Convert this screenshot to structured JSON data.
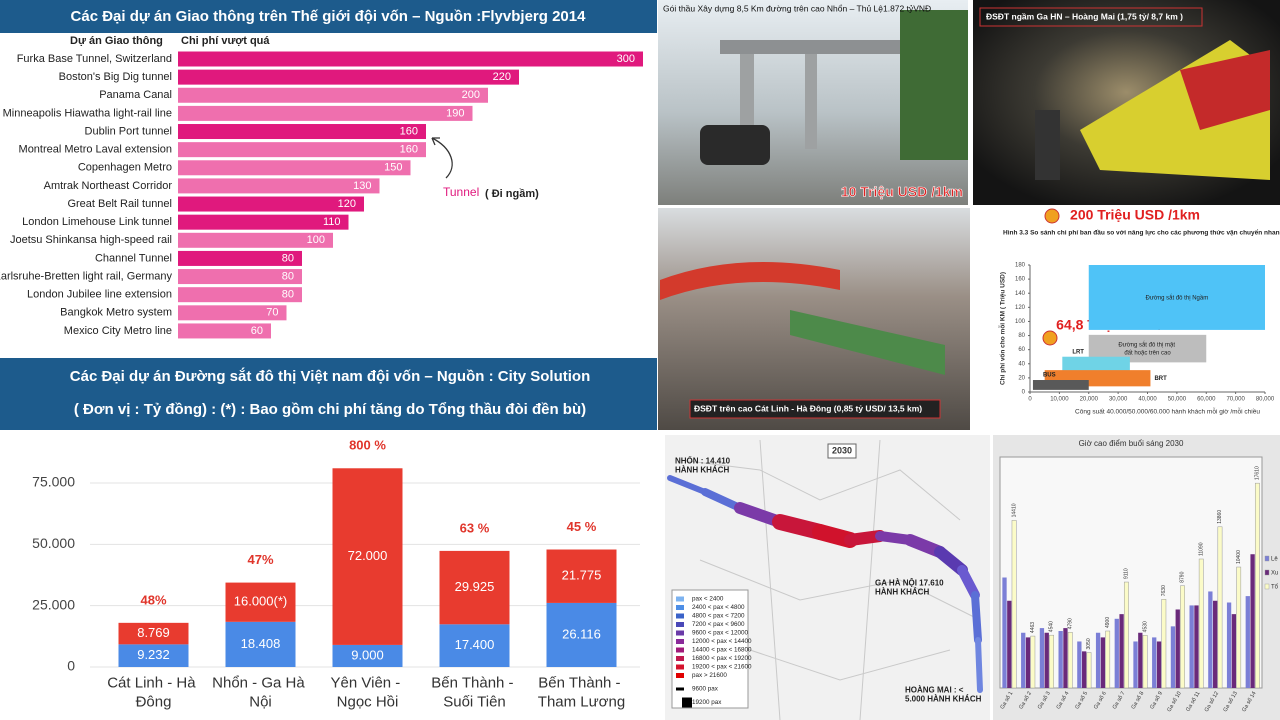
{
  "chart_data": [
    {
      "type": "hbar",
      "title": "Các Đại dự án Giao thông  trên Thế giới  đội vốn – Nguồn :Flyvbjerg 2014",
      "category_header": "Dự án Giao thông",
      "value_header": "Chi phí vượt quá",
      "categories": [
        "Furka Base Tunnel, Switzerland",
        "Boston's Big Dig tunnel",
        "Panama Canal",
        "Minneapolis Hiawatha light-rail line",
        "Dublin Port tunnel",
        "Montreal Metro Laval extension",
        "Copenhagen Metro",
        "Amtrak Northeast Corridor",
        "Great Belt Rail tunnel",
        "London Limehouse Link tunnel",
        "Joetsu Shinkansa high-speed rail",
        "Channel Tunnel",
        "Karlsruhe-Bretten light rail, Germany",
        "London Jubilee line extension",
        "Bangkok Metro system",
        "Mexico City Metro line"
      ],
      "values": [
        300,
        220,
        200,
        190,
        160,
        160,
        150,
        130,
        120,
        110,
        100,
        80,
        80,
        80,
        70,
        60
      ],
      "colors": [
        "#e0197d",
        "#e0197d",
        "#ef6fae",
        "#ef6fae",
        "#e0197d",
        "#ef6fae",
        "#ef6fae",
        "#ef6fae",
        "#e0197d",
        "#e0197d",
        "#ef6fae",
        "#e0197d",
        "#ef6fae",
        "#ef6fae",
        "#ef6fae",
        "#ef6fae"
      ],
      "xlim": [
        0,
        300
      ],
      "annotation": "Tunnel",
      "annotation_note": "( Đi ngầm)"
    },
    {
      "type": "stacked-bar",
      "title": "Các Đại dự án  Đường sắt đô thị Việt nam đội vốn – Nguồn : City Solution",
      "subtitle": "( Đơn vị :  Tỷ đồng) : (*) : Bao gồm chi phí tăng do Tổng thầu đòi đền bù)",
      "categories": [
        "Cát Linh - Hà Đông",
        "Nhổn - Ga Hà Nội",
        "Yên Viên - Ngọc Hồi",
        "Bến Thành - Suối Tiên",
        "Bến Thành - Tham Lương"
      ],
      "series": [
        {
          "color": "#4a8ae6",
          "values": [
            9232,
            18408,
            9000,
            17400,
            26116
          ],
          "value_labels": [
            "9.232",
            "18.408",
            "9.000",
            "17.400",
            "26.116"
          ]
        },
        {
          "color": "#e83b2f",
          "values": [
            8769,
            16000,
            72000,
            29925,
            21775
          ],
          "value_labels": [
            "8.769",
            "16.000(*)",
            "72.000",
            "29.925",
            "21.775"
          ]
        }
      ],
      "annotations": [
        "48%",
        "47%",
        "800 %",
        "63 %",
        "45 %"
      ],
      "ylim": [
        0,
        80000
      ],
      "yticks": [
        {
          "value": 0,
          "label": "0"
        },
        {
          "value": 25000,
          "label": "25.000"
        },
        {
          "value": 50000,
          "label": "50.000"
        },
        {
          "value": 75000,
          "label": "75.000"
        }
      ],
      "grid": true
    },
    {
      "type": "range-box",
      "title": "Hình 3.3 So sánh chi phí ban đầu so với năng lực cho các phương thức vận chuyển nhanh",
      "xlabel": "Công suất 40.000/50.000/60.000 hành khách mỗi giờ /mỗi chiều",
      "ylabel": "Chi phí vốn cho mỗi KM ( Triệu USD)",
      "xlim": [
        0,
        80000
      ],
      "xticks": [
        0,
        {
          "value": 10000,
          "label": "10,000"
        },
        {
          "value": 20000,
          "label": "20,000"
        },
        {
          "value": 30000,
          "label": "30,000"
        },
        {
          "value": 40000,
          "label": "40,000"
        },
        {
          "value": 50000,
          "label": "50,000"
        },
        {
          "value": 60000,
          "label": "60,000"
        },
        {
          "value": 70000,
          "label": "70,000"
        },
        {
          "value": 80000,
          "label": "80,000"
        }
      ],
      "ylim": [
        0,
        180
      ],
      "yticks": [
        0,
        20,
        40,
        60,
        80,
        100,
        120,
        140,
        160,
        180
      ],
      "boxes": [
        {
          "label": "Đường sắt đô thị Ngầm",
          "color": "#4fc3f7",
          "x": [
            20000,
            80000
          ],
          "y": [
            88,
            180
          ]
        },
        {
          "label": "Đường sắt đô thị mặt đất hoặc trên cao",
          "color": "#bdbdbd",
          "x": [
            20000,
            60000
          ],
          "y": [
            42,
            81
          ]
        },
        {
          "label": "LRT",
          "color": "#6fd3e6",
          "x": [
            11000,
            34000
          ],
          "y": [
            28,
            50
          ]
        },
        {
          "label": "BRT",
          "color": "#f07f2c",
          "x": [
            5000,
            41000
          ],
          "y": [
            8,
            31
          ]
        },
        {
          "label": "BUS",
          "color": "#595959",
          "x": [
            1000,
            20000
          ],
          "y": [
            3,
            17
          ]
        }
      ]
    },
    {
      "type": "grouped-bar",
      "title": "Giờ cao điểm buổi sáng 2030",
      "categories": [
        "Ga số 1",
        "Ga số 2",
        "Ga số 3",
        "Ga số 4",
        "Ga số 5",
        "Ga số 6",
        "Ga số 7",
        "Ga số 8",
        "Ga số 9",
        "Ga số 10",
        "Ga số 11",
        "Ga số 12",
        "Ga số 13",
        "Ga số 14"
      ],
      "ylim": [
        0,
        19000
      ],
      "series": [
        {
          "name": "Lê",
          "color": "#7b7fd6",
          "values": [
            9500,
            4750,
            5150,
            4900,
            4000,
            4750,
            5950,
            4000,
            4350,
            5300,
            7100,
            8300,
            7350,
            7900
          ]
        },
        {
          "name": "Xu",
          "color": "#6a2a7a",
          "values": [
            7500,
            4350,
            4750,
            5150,
            3150,
            4350,
            6350,
            4750,
            4000,
            6750,
            7100,
            7500,
            6350,
            11500
          ]
        },
        {
          "name": "Tổ",
          "color": "#fbfbc8",
          "values": [
            14410,
            4463,
            4540,
            4790,
            3050,
            4900,
            9110,
            4530,
            7630,
            8790,
            11090,
            13860,
            10400,
            17610
          ]
        }
      ]
    }
  ],
  "photos": [
    {
      "caption": "Gói thầu Xây dựng 8,5 Km đường trên cao  Nhổn – Thủ Lệ1.872 tỷVNĐ",
      "cost": "10 Triệu USD /1km"
    },
    {
      "caption": "ĐSĐT ngầm Ga HN – Hoàng Mai  (1,75 tỷ/ 8,7 km )",
      "cost": "200 Triệu USD /1km"
    },
    {
      "caption": "ĐSĐT trên cao  Cát Linh - Hà Đông (0,85 tỷ USD/ 13,5 km)",
      "cost": "64,8 Triệu USD /1km"
    }
  ],
  "map": {
    "year": "2030",
    "stations": [
      "NHỔN : 14.410 HÀNH KHÁCH",
      "GA HÀ NỘI 17.610 HÀNH KHÁCH",
      "HOÀNG MAI : < 5.000 HÀNH KHÁCH"
    ],
    "legend": [
      "pax < 2400",
      "2400 < pax < 4800",
      "4800 < pax < 7200",
      "7200 < pax < 9600",
      "9600 < pax < 12000",
      "12000 < pax < 14400",
      "14400 < pax < 16800",
      "16800 < pax < 19200",
      "19200 < pax < 21600",
      "pax > 21600",
      "9600 pax",
      "19200 pax"
    ]
  }
}
